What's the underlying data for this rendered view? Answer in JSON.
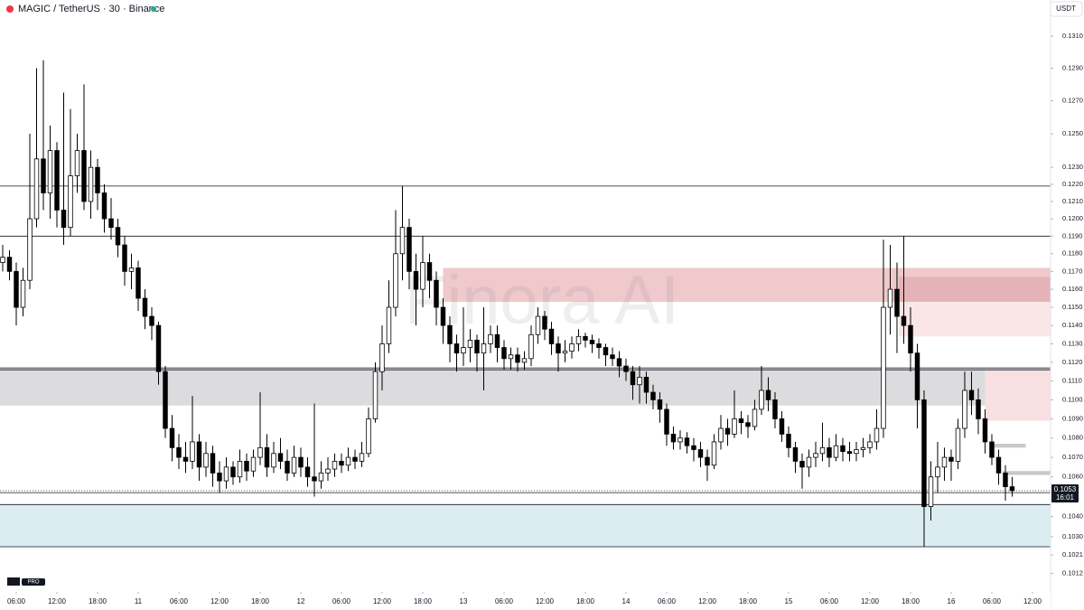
{
  "chart_data": {
    "type": "candlestick",
    "title": "MAGIC / TetherUS · 30 · Binance",
    "currency": "USDT",
    "watermark": "Finora AI",
    "log_scale": true,
    "grid": false,
    "up_color": "#ffffff",
    "down_color": "#000000",
    "wick_color": "#000000",
    "ylim": [
      0.1003,
      0.1333
    ],
    "xlim": [
      -2.4,
      152.67
    ],
    "yticks": [
      {
        "value": 0.131,
        "label": "0.1310"
      },
      {
        "value": 0.129,
        "label": "0.1290"
      },
      {
        "value": 0.127,
        "label": "0.1270"
      },
      {
        "value": 0.125,
        "label": "0.1250"
      },
      {
        "value": 0.123,
        "label": "0.1230"
      },
      {
        "value": 0.122,
        "label": "0.1220"
      },
      {
        "value": 0.121,
        "label": "0.1210"
      },
      {
        "value": 0.12,
        "label": "0.1200"
      },
      {
        "value": 0.119,
        "label": "0.1190"
      },
      {
        "value": 0.118,
        "label": "0.1180"
      },
      {
        "value": 0.117,
        "label": "0.1170"
      },
      {
        "value": 0.116,
        "label": "0.1160"
      },
      {
        "value": 0.115,
        "label": "0.1150"
      },
      {
        "value": 0.114,
        "label": "0.1140"
      },
      {
        "value": 0.113,
        "label": "0.1130"
      },
      {
        "value": 0.112,
        "label": "0.1120"
      },
      {
        "value": 0.111,
        "label": "0.1110"
      },
      {
        "value": 0.11,
        "label": "0.1100"
      },
      {
        "value": 0.109,
        "label": "0.1090"
      },
      {
        "value": 0.108,
        "label": "0.1080"
      },
      {
        "value": 0.107,
        "label": "0.1070"
      },
      {
        "value": 0.106,
        "label": "0.1060"
      },
      {
        "value": 0.104,
        "label": "0.1040"
      },
      {
        "value": 0.103,
        "label": "0.1030"
      },
      0.1021,
      0.1012
    ],
    "xticks": [
      {
        "value": 0,
        "label": "06:00"
      },
      {
        "value": 6,
        "label": "12:00"
      },
      {
        "value": 12,
        "label": "18:00"
      },
      {
        "value": 18,
        "label": "11"
      },
      {
        "value": 24,
        "label": "06:00"
      },
      {
        "value": 30,
        "label": "12:00"
      },
      {
        "value": 36,
        "label": "18:00"
      },
      {
        "value": 42,
        "label": "12"
      },
      {
        "value": 48,
        "label": "06:00"
      },
      {
        "value": 54,
        "label": "12:00"
      },
      {
        "value": 60,
        "label": "18:00"
      },
      {
        "value": 66,
        "label": "13"
      },
      {
        "value": 72,
        "label": "06:00"
      },
      {
        "value": 78,
        "label": "12:00"
      },
      {
        "value": 84,
        "label": "18:00"
      },
      {
        "value": 90,
        "label": "14"
      },
      {
        "value": 96,
        "label": "06:00"
      },
      {
        "value": 102,
        "label": "12:00"
      },
      {
        "value": 108,
        "label": "18:00"
      },
      {
        "value": 114,
        "label": "15"
      },
      {
        "value": 120,
        "label": "06:00"
      },
      {
        "value": 126,
        "label": "12:00"
      },
      {
        "value": 132,
        "label": "18:00"
      },
      {
        "value": 138,
        "label": "16"
      },
      {
        "value": 144,
        "label": "06:00"
      },
      {
        "value": 150,
        "label": "12:00"
      }
    ],
    "last_price": 0.1053,
    "countdown": "16:01",
    "levels": [
      0.1219,
      0.119,
      0.1117,
      0.1116,
      0.1052,
      0.1046,
      0.1025
    ],
    "zones": [
      {
        "from": 0.1117,
        "to": 0.1097,
        "color": "#dcdcde"
      },
      {
        "from": 0.1046,
        "to": 0.1025,
        "color": "#dcedf1"
      },
      {
        "from": 0.1172,
        "to": 0.1153,
        "x0": 63,
        "color": "#efc9cc"
      },
      {
        "from": 0.1167,
        "to": 0.1153,
        "x0": 130.3,
        "color": "#e5b3b7"
      },
      {
        "from": 0.1153,
        "to": 0.1134,
        "x0": 130.3,
        "color": "#fbe6e7"
      },
      {
        "from": 0.1116,
        "to": 0.1089,
        "x0": 143,
        "color": "#f8dfe1"
      },
      {
        "from": 0.1077,
        "to": 0.1075,
        "x0": 144.3,
        "x1": 149,
        "color": "#c8c9cd"
      },
      {
        "from": 0.1063,
        "to": 0.1061,
        "x0": 145.6,
        "color": "#c8c9cd"
      }
    ],
    "series": [
      {
        "x": [
          -2,
          -1,
          0,
          1,
          2,
          3,
          4,
          5,
          6,
          7,
          8,
          9,
          10,
          11,
          12,
          13,
          14,
          15,
          16,
          17,
          18,
          19,
          20,
          21,
          22,
          23,
          24,
          25,
          26,
          27,
          28,
          29,
          30,
          31,
          32,
          33,
          34,
          35,
          36,
          37,
          38,
          39,
          40,
          41,
          42,
          43,
          44,
          45,
          46,
          47,
          48,
          49,
          50,
          51,
          52,
          53,
          54,
          55,
          56,
          57,
          58,
          59,
          60,
          61,
          62,
          63,
          64,
          65,
          66,
          67,
          68,
          69,
          70,
          71,
          72,
          73,
          74,
          75,
          76,
          77,
          78,
          79,
          80,
          81,
          82,
          83,
          84,
          85,
          86,
          87,
          88,
          89,
          90,
          91,
          92,
          93,
          94,
          95,
          96,
          97,
          98,
          99,
          100,
          101,
          102,
          103,
          104,
          105,
          106,
          107,
          108,
          109,
          110,
          111,
          112,
          113,
          114,
          115,
          116,
          117,
          118,
          119,
          120,
          121,
          122,
          123,
          124,
          125,
          126,
          127,
          128,
          129,
          130,
          131,
          132,
          133,
          134,
          135,
          136,
          137,
          138,
          139,
          140,
          141,
          142,
          143,
          144,
          145,
          146,
          147
        ],
        "open": [
          0.1175,
          0.1178,
          0.117,
          0.115,
          0.1165,
          0.12,
          0.1235,
          0.1215,
          0.124,
          0.1205,
          0.1195,
          0.1225,
          0.124,
          0.121,
          0.123,
          0.1215,
          0.12,
          0.1195,
          0.1185,
          0.117,
          0.1172,
          0.1155,
          0.1145,
          0.114,
          0.1115,
          0.1085,
          0.1075,
          0.107,
          0.1068,
          0.1078,
          0.1065,
          0.1072,
          0.1062,
          0.1058,
          0.1065,
          0.106,
          0.1068,
          0.1063,
          0.107,
          0.1075,
          0.1065,
          0.1072,
          0.1068,
          0.1062,
          0.107,
          0.1065,
          0.106,
          0.1058,
          0.1062,
          0.1064,
          0.1068,
          0.1066,
          0.107,
          0.1068,
          0.1072,
          0.109,
          0.1115,
          0.113,
          0.115,
          0.118,
          0.1195,
          0.117,
          0.116,
          0.1175,
          0.1165,
          0.115,
          0.114,
          0.113,
          0.1125,
          0.1128,
          0.1132,
          0.1125,
          0.113,
          0.1135,
          0.1128,
          0.1122,
          0.1124,
          0.112,
          0.1122,
          0.1135,
          0.1145,
          0.1138,
          0.113,
          0.1125,
          0.1126,
          0.113,
          0.1134,
          0.1132,
          0.113,
          0.1128,
          0.1124,
          0.1122,
          0.1118,
          0.1115,
          0.1108,
          0.1112,
          0.1104,
          0.11,
          0.1095,
          0.1082,
          0.1078,
          0.108,
          0.1076,
          0.1074,
          0.107,
          0.1066,
          0.1078,
          0.1085,
          0.1082,
          0.109,
          0.1088,
          0.1086,
          0.1095,
          0.1105,
          0.11,
          0.109,
          0.1082,
          0.1075,
          0.1068,
          0.1065,
          0.107,
          0.1072,
          0.1075,
          0.107,
          0.1076,
          0.1073,
          0.1072,
          0.1074,
          0.1075,
          0.1078,
          0.1085,
          0.115,
          0.116,
          0.1145,
          0.114,
          0.1125,
          0.11,
          0.1045,
          0.106,
          0.1065,
          0.107,
          0.1068,
          0.1085,
          0.1105,
          0.11,
          0.109,
          0.1078,
          0.107,
          0.1062,
          0.1055
        ],
        "high": [
          0.1185,
          0.1182,
          0.1175,
          0.1172,
          0.125,
          0.129,
          0.1295,
          0.1255,
          0.1245,
          0.1275,
          0.1265,
          0.125,
          0.128,
          0.124,
          0.1235,
          0.122,
          0.1212,
          0.12,
          0.119,
          0.118,
          0.1176,
          0.116,
          0.115,
          0.1142,
          0.1118,
          0.1092,
          0.1082,
          0.1078,
          0.1102,
          0.1082,
          0.1078,
          0.1076,
          0.1068,
          0.107,
          0.1068,
          0.1074,
          0.1072,
          0.1074,
          0.1104,
          0.1082,
          0.1078,
          0.108,
          0.1074,
          0.1076,
          0.1075,
          0.107,
          0.1098,
          0.1068,
          0.107,
          0.1072,
          0.1072,
          0.1075,
          0.1074,
          0.1078,
          0.1096,
          0.112,
          0.114,
          0.1165,
          0.1205,
          0.1219,
          0.12,
          0.118,
          0.119,
          0.118,
          0.117,
          0.1155,
          0.1145,
          0.1135,
          0.115,
          0.1138,
          0.1135,
          0.115,
          0.114,
          0.114,
          0.1132,
          0.1128,
          0.1128,
          0.1126,
          0.114,
          0.115,
          0.1148,
          0.1142,
          0.1134,
          0.1132,
          0.1134,
          0.1138,
          0.1136,
          0.1135,
          0.1133,
          0.113,
          0.1128,
          0.1126,
          0.1122,
          0.1118,
          0.1118,
          0.1115,
          0.1108,
          0.1104,
          0.1098,
          0.1086,
          0.1084,
          0.1083,
          0.108,
          0.1078,
          0.1074,
          0.1082,
          0.1092,
          0.109,
          0.1105,
          0.1094,
          0.1092,
          0.11,
          0.1118,
          0.1112,
          0.1104,
          0.1094,
          0.1086,
          0.1078,
          0.1072,
          0.1074,
          0.1078,
          0.1088,
          0.108,
          0.1082,
          0.108,
          0.1078,
          0.1078,
          0.108,
          0.1082,
          0.1095,
          0.1188,
          0.1185,
          0.1175,
          0.119,
          0.115,
          0.113,
          0.1105,
          0.1068,
          0.1078,
          0.1075,
          0.1074,
          0.109,
          0.1115,
          0.1115,
          0.1106,
          0.1095,
          0.1082,
          0.1074,
          0.1066,
          0.106
        ],
        "low": [
          0.117,
          0.1165,
          0.114,
          0.1145,
          0.116,
          0.1195,
          0.1205,
          0.12,
          0.1195,
          0.1185,
          0.119,
          0.1215,
          0.1205,
          0.12,
          0.1205,
          0.1192,
          0.1188,
          0.1178,
          0.1162,
          0.116,
          0.1148,
          0.1138,
          0.1132,
          0.1108,
          0.108,
          0.1068,
          0.1064,
          0.1062,
          0.1064,
          0.1058,
          0.106,
          0.1055,
          0.1052,
          0.1054,
          0.1056,
          0.1057,
          0.1058,
          0.106,
          0.1066,
          0.106,
          0.1062,
          0.1064,
          0.1058,
          0.106,
          0.106,
          0.1055,
          0.105,
          0.1054,
          0.1058,
          0.106,
          0.1062,
          0.1063,
          0.1064,
          0.1065,
          0.107,
          0.1088,
          0.1105,
          0.1125,
          0.1145,
          0.1165,
          0.116,
          0.114,
          0.115,
          0.1155,
          0.114,
          0.113,
          0.112,
          0.1115,
          0.1118,
          0.112,
          0.1115,
          0.1105,
          0.1125,
          0.112,
          0.1116,
          0.1116,
          0.1115,
          0.1116,
          0.1118,
          0.113,
          0.1132,
          0.1124,
          0.1115,
          0.112,
          0.1122,
          0.1126,
          0.1128,
          0.1125,
          0.1122,
          0.1118,
          0.1118,
          0.1112,
          0.111,
          0.11,
          0.1098,
          0.1098,
          0.1095,
          0.1088,
          0.1076,
          0.1074,
          0.1074,
          0.1072,
          0.1068,
          0.1065,
          0.1058,
          0.1064,
          0.1074,
          0.1076,
          0.108,
          0.1082,
          0.108,
          0.1084,
          0.1092,
          0.1094,
          0.1085,
          0.1078,
          0.107,
          0.1062,
          0.1054,
          0.106,
          0.1065,
          0.1068,
          0.1065,
          0.1068,
          0.1068,
          0.1068,
          0.1068,
          0.107,
          0.1072,
          0.1074,
          0.108,
          0.1135,
          0.1125,
          0.113,
          0.1115,
          0.1085,
          0.1025,
          0.1038,
          0.1052,
          0.1058,
          0.1058,
          0.1064,
          0.108,
          0.1092,
          0.1082,
          0.1072,
          0.1066,
          0.1056,
          0.1048,
          0.105
        ],
        "close": [
          0.1178,
          0.117,
          0.115,
          0.1165,
          0.12,
          0.1235,
          0.1215,
          0.124,
          0.1205,
          0.1195,
          0.1225,
          0.124,
          0.121,
          0.123,
          0.1215,
          0.12,
          0.1195,
          0.1185,
          0.117,
          0.1172,
          0.1155,
          0.1145,
          0.114,
          0.1115,
          0.1085,
          0.1075,
          0.107,
          0.1068,
          0.1078,
          0.1065,
          0.1072,
          0.1062,
          0.1058,
          0.1065,
          0.106,
          0.1068,
          0.1063,
          0.107,
          0.1075,
          0.1065,
          0.1072,
          0.1068,
          0.1062,
          0.107,
          0.1065,
          0.106,
          0.1058,
          0.1062,
          0.1064,
          0.1068,
          0.1066,
          0.107,
          0.1068,
          0.1072,
          0.109,
          0.1115,
          0.113,
          0.115,
          0.118,
          0.1195,
          0.117,
          0.116,
          0.1175,
          0.1165,
          0.115,
          0.114,
          0.113,
          0.1125,
          0.1128,
          0.1132,
          0.1125,
          0.113,
          0.1135,
          0.1128,
          0.1122,
          0.1124,
          0.112,
          0.1122,
          0.1135,
          0.1145,
          0.1138,
          0.113,
          0.1125,
          0.1126,
          0.113,
          0.1134,
          0.1132,
          0.113,
          0.1128,
          0.1124,
          0.1122,
          0.1118,
          0.1115,
          0.1108,
          0.1112,
          0.1104,
          0.11,
          0.1095,
          0.1082,
          0.1078,
          0.108,
          0.1076,
          0.1074,
          0.107,
          0.1066,
          0.1078,
          0.1085,
          0.1082,
          0.109,
          0.1088,
          0.1086,
          0.1095,
          0.1105,
          0.11,
          0.109,
          0.1082,
          0.1075,
          0.1068,
          0.1065,
          0.107,
          0.1072,
          0.1075,
          0.107,
          0.1076,
          0.1073,
          0.1072,
          0.1074,
          0.1075,
          0.1078,
          0.1085,
          0.115,
          0.116,
          0.1145,
          0.114,
          0.1125,
          0.11,
          0.1045,
          0.106,
          0.1065,
          0.107,
          0.1068,
          0.1085,
          0.1105,
          0.11,
          0.109,
          0.1078,
          0.107,
          0.1062,
          0.1055,
          0.1053
        ]
      }
    ]
  }
}
